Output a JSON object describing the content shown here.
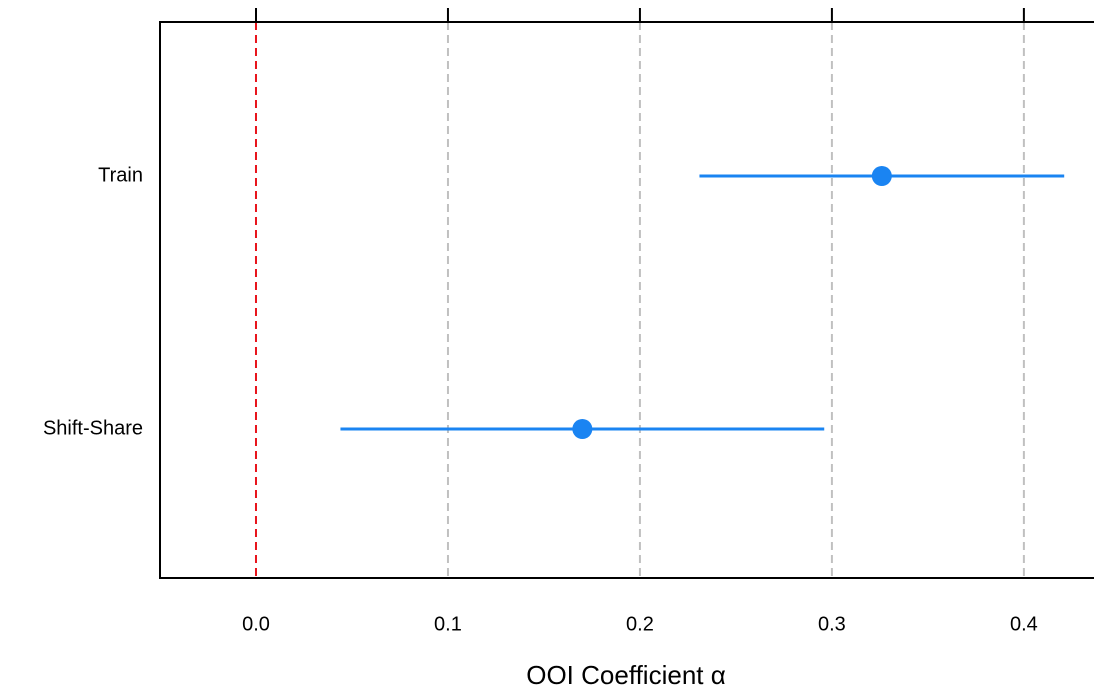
{
  "chart_data": {
    "type": "errorbar",
    "x_label": "OOI Coefficient α",
    "categories": [
      "Train",
      "Shift-Share"
    ],
    "values": [
      0.326,
      0.17
    ],
    "lower": [
      0.231,
      0.044
    ],
    "upper": [
      0.421,
      0.296
    ],
    "color": "#1a84f2",
    "xlim": [
      -0.05,
      0.436
    ],
    "xticks": [
      {
        "value": 0,
        "label": "0.0"
      },
      0.1,
      0.2,
      0.3,
      0.4
    ],
    "grid": true,
    "grid_color": "#c0c0c0",
    "reference_line": 0,
    "reference_color": "#e8141b"
  }
}
